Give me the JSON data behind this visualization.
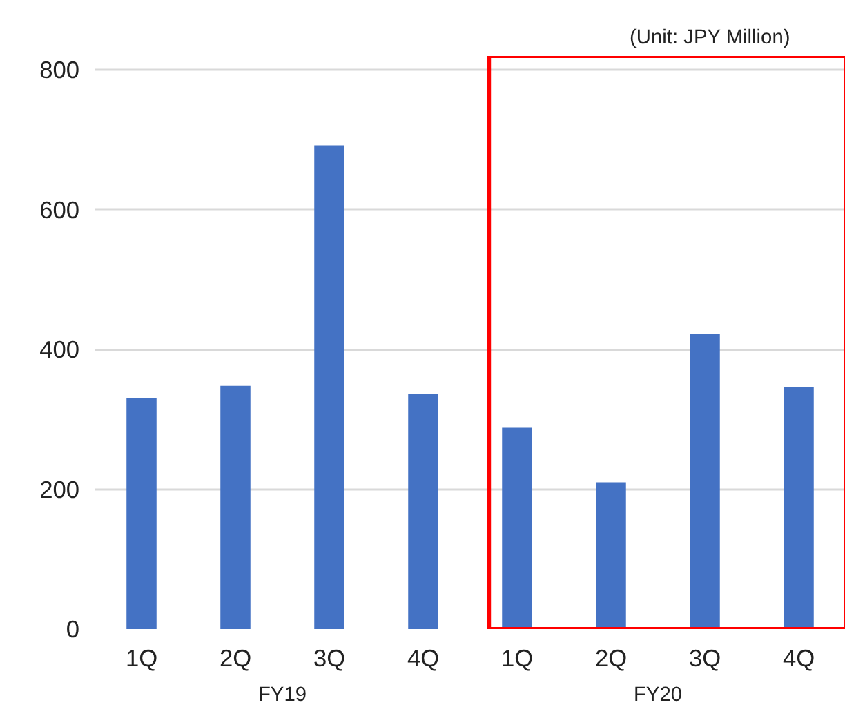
{
  "chart_data": {
    "type": "bar",
    "categories": [
      "1Q",
      "2Q",
      "3Q",
      "4Q",
      "1Q",
      "2Q",
      "3Q",
      "4Q"
    ],
    "values": [
      330,
      348,
      692,
      336,
      288,
      210,
      422,
      346
    ],
    "color": "#4472c4",
    "ylim": [
      0,
      820
    ],
    "yticks": [
      0,
      200,
      400,
      600,
      800
    ],
    "grid": "y",
    "annotations": [
      "(Unit: JPY Million)",
      "FY19",
      "FY20"
    ]
  }
}
